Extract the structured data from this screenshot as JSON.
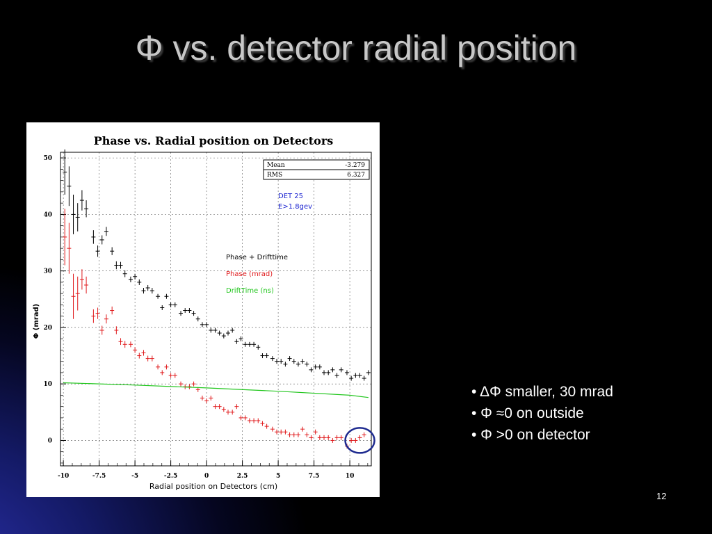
{
  "slide": {
    "title": "Φ vs. detector radial position",
    "page_number": "12",
    "bullets": [
      "• ΔΦ smaller, 30 mrad",
      "• Φ ≈0 on outside",
      "• Φ >0 on detector"
    ]
  },
  "chart_data": {
    "type": "scatter",
    "title": "Phase vs. Radial position on Detectors",
    "xlabel": "Radial position on Detectors (cm)",
    "ylabel": "Φ (mrad)",
    "xlim": [
      -10.2,
      11.5
    ],
    "ylim": [
      -4.5,
      51
    ],
    "x_ticks": [
      -10,
      -7.5,
      -5,
      -2.5,
      0,
      2.5,
      5,
      7.5,
      10
    ],
    "x_tick_labels": [
      "-10",
      "-7.5",
      "-5",
      "-2.5",
      "0",
      "2.5",
      "5",
      "7.5",
      "10"
    ],
    "y_ticks": [
      0,
      10,
      20,
      30,
      40,
      50
    ],
    "y_tick_labels": [
      "0",
      "10",
      "20",
      "30",
      "40",
      "50"
    ],
    "grid": true,
    "stats_box": {
      "rows": [
        {
          "label": "Mean",
          "value": "-3.279"
        },
        {
          "label": "RMS",
          "value": "6.327"
        }
      ]
    },
    "annotations": {
      "det": "DET 25",
      "energy": "E>1.8gev"
    },
    "legend": [
      {
        "label": "Phase + Drifttime",
        "color": "#000000"
      },
      {
        "label": "Phase (mrad)",
        "color": "#e0191b"
      },
      {
        "label": "DriftTime (ns)",
        "color": "#22c61e"
      }
    ],
    "series": [
      {
        "name": "Phase + Drifttime",
        "color": "#000000",
        "x": [
          -9.9,
          -9.6,
          -9.3,
          -9.0,
          -8.7,
          -8.4,
          -7.9,
          -7.6,
          -7.3,
          -7.0,
          -6.6,
          -6.3,
          -6.0,
          -5.7,
          -5.3,
          -5.0,
          -4.7,
          -4.4,
          -4.1,
          -3.8,
          -3.4,
          -3.1,
          -2.8,
          -2.5,
          -2.2,
          -1.8,
          -1.5,
          -1.2,
          -0.9,
          -0.6,
          -0.3,
          0.0,
          0.3,
          0.6,
          0.9,
          1.2,
          1.5,
          1.8,
          2.1,
          2.4,
          2.7,
          3.0,
          3.3,
          3.6,
          3.9,
          4.2,
          4.6,
          4.9,
          5.2,
          5.5,
          5.8,
          6.1,
          6.4,
          6.7,
          7.0,
          7.3,
          7.6,
          7.9,
          8.2,
          8.5,
          8.8,
          9.1,
          9.4,
          9.8,
          10.1,
          10.4,
          10.7,
          11.0,
          11.3
        ],
        "y": [
          47.5,
          45,
          40,
          39.5,
          42.5,
          41,
          36,
          33.5,
          35.5,
          37,
          33.5,
          31,
          31,
          29.5,
          28.5,
          29,
          28,
          26.5,
          27,
          26.5,
          25.5,
          23.5,
          25.5,
          24,
          24,
          22.5,
          23,
          23,
          22.5,
          21.5,
          20.5,
          20.5,
          19.5,
          19.5,
          19,
          18.5,
          19,
          19.5,
          17.5,
          18,
          17,
          17,
          17,
          16.5,
          15,
          15,
          14.5,
          14,
          14,
          13.5,
          14.5,
          14,
          13.5,
          14,
          13.5,
          12.5,
          13,
          13,
          12,
          12,
          12.5,
          11.5,
          12.5,
          12,
          11,
          11.5,
          11.5,
          11,
          12
        ],
        "yerr": [
          4,
          3.5,
          3.5,
          2.5,
          1.8,
          1.5,
          1.2,
          1.0,
          0.8,
          0.8,
          0.7,
          0.7,
          0.6,
          0.6,
          0.5,
          0.5,
          0.5,
          0.5,
          0.5,
          0.5,
          0.4,
          0.4,
          0.4,
          0.4,
          0.4,
          0.4,
          0.4,
          0.4,
          0.4,
          0.4,
          0.4,
          0.4,
          0.4,
          0.4,
          0.4,
          0.4,
          0.4,
          0.4,
          0.4,
          0.4,
          0.4,
          0.4,
          0.4,
          0.4,
          0.4,
          0.4,
          0.4,
          0.4,
          0.4,
          0.4,
          0.4,
          0.4,
          0.4,
          0.4,
          0.4,
          0.4,
          0.4,
          0.4,
          0.4,
          0.4,
          0.4,
          0.4,
          0.4,
          0.4,
          0.4,
          0.4,
          0.4,
          0.4,
          0.4
        ]
      },
      {
        "name": "Phase (mrad)",
        "color": "#e0191b",
        "x": [
          -9.9,
          -9.6,
          -9.3,
          -9.0,
          -8.7,
          -8.4,
          -7.9,
          -7.6,
          -7.3,
          -7.0,
          -6.6,
          -6.3,
          -6.0,
          -5.7,
          -5.3,
          -5.0,
          -4.7,
          -4.4,
          -4.1,
          -3.8,
          -3.4,
          -3.1,
          -2.8,
          -2.5,
          -2.2,
          -1.8,
          -1.5,
          -1.2,
          -0.9,
          -0.6,
          -0.3,
          0.0,
          0.3,
          0.6,
          0.9,
          1.2,
          1.5,
          1.8,
          2.1,
          2.4,
          2.7,
          3.0,
          3.3,
          3.6,
          3.9,
          4.2,
          4.6,
          4.9,
          5.2,
          5.5,
          5.8,
          6.1,
          6.4,
          6.7,
          7.0,
          7.3,
          7.6,
          7.9,
          8.2,
          8.5,
          8.8,
          9.1,
          9.4,
          9.8,
          10.1,
          10.4,
          10.7,
          11.0
        ],
        "y": [
          36,
          34,
          25.5,
          26,
          28.5,
          27.5,
          22,
          22.5,
          19.5,
          21.5,
          23,
          19.5,
          17.5,
          17,
          17,
          16,
          15,
          15.5,
          14.5,
          14.5,
          13,
          12,
          13,
          11.5,
          11.5,
          10,
          9.5,
          9.5,
          10,
          9,
          7.5,
          7,
          7.5,
          6,
          6,
          5.5,
          5,
          5,
          6,
          4,
          4,
          3.5,
          3.5,
          3.5,
          3,
          2.5,
          2,
          1.5,
          1.5,
          1.5,
          1,
          1,
          1,
          2,
          1,
          0.5,
          1.5,
          0.5,
          0.5,
          0.5,
          0,
          0.5,
          0.5,
          -1,
          0,
          0,
          0.5,
          1
        ],
        "yerr": [
          5,
          4.5,
          4,
          3,
          1.8,
          1.5,
          1.2,
          1.0,
          0.8,
          0.8,
          0.7,
          0.7,
          0.6,
          0.6,
          0.5,
          0.5,
          0.5,
          0.5,
          0.5,
          0.5,
          0.4,
          0.4,
          0.4,
          0.4,
          0.4,
          0.4,
          0.4,
          0.4,
          0.4,
          0.4,
          0.4,
          0.4,
          0.4,
          0.4,
          0.4,
          0.4,
          0.4,
          0.4,
          0.4,
          0.4,
          0.4,
          0.4,
          0.4,
          0.4,
          0.4,
          0.4,
          0.4,
          0.4,
          0.4,
          0.4,
          0.4,
          0.4,
          0.4,
          0.4,
          0.4,
          0.4,
          0.4,
          0.4,
          0.4,
          0.4,
          0.4,
          0.4,
          0.4,
          0.4,
          0.4,
          0.4,
          0.4,
          0.4
        ]
      },
      {
        "name": "DriftTime (ns)",
        "color": "#22c61e",
        "x": [
          -10,
          -5,
          0,
          5,
          10,
          11.3
        ],
        "y": [
          10.2,
          9.8,
          9.3,
          8.7,
          8.0,
          7.6
        ]
      }
    ],
    "highlight_circle": {
      "x": 10.7,
      "y": 0,
      "color": "#1d2a8f"
    }
  }
}
